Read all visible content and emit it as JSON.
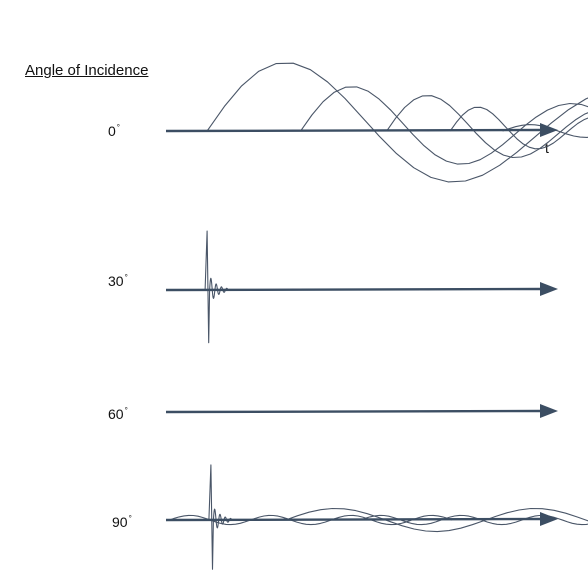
{
  "heading": "Angle of Incidence",
  "axis_label": "t",
  "degree_symbol": "°",
  "colors": {
    "axis": "#3c4e63",
    "trace": "#4a5668",
    "text": "#111111"
  },
  "rows": [
    {
      "angle": "0",
      "bursts": [
        {
          "t": 0.11,
          "amp": 1.0,
          "kind": "ringdown"
        },
        {
          "t": 0.36,
          "amp": 0.65,
          "kind": "ringdown"
        },
        {
          "t": 0.59,
          "amp": 0.52,
          "kind": "ringdown"
        },
        {
          "t": 0.76,
          "amp": 0.35,
          "kind": "ringdown"
        },
        {
          "t": 0.9,
          "amp": 0.08,
          "kind": "wiggle"
        }
      ]
    },
    {
      "angle": "30",
      "bursts": [
        {
          "t": 0.11,
          "amp": 1.0,
          "kind": "spike"
        }
      ]
    },
    {
      "angle": "60",
      "bursts": []
    },
    {
      "angle": "90",
      "bursts": [
        {
          "t": 0.01,
          "amp": 0.08,
          "kind": "wiggle"
        },
        {
          "t": 0.12,
          "amp": 1.0,
          "kind": "spike"
        },
        {
          "t": 0.32,
          "amp": 0.2,
          "kind": "wiggle"
        },
        {
          "t": 0.52,
          "amp": 0.08,
          "kind": "wiggle"
        }
      ]
    }
  ]
}
